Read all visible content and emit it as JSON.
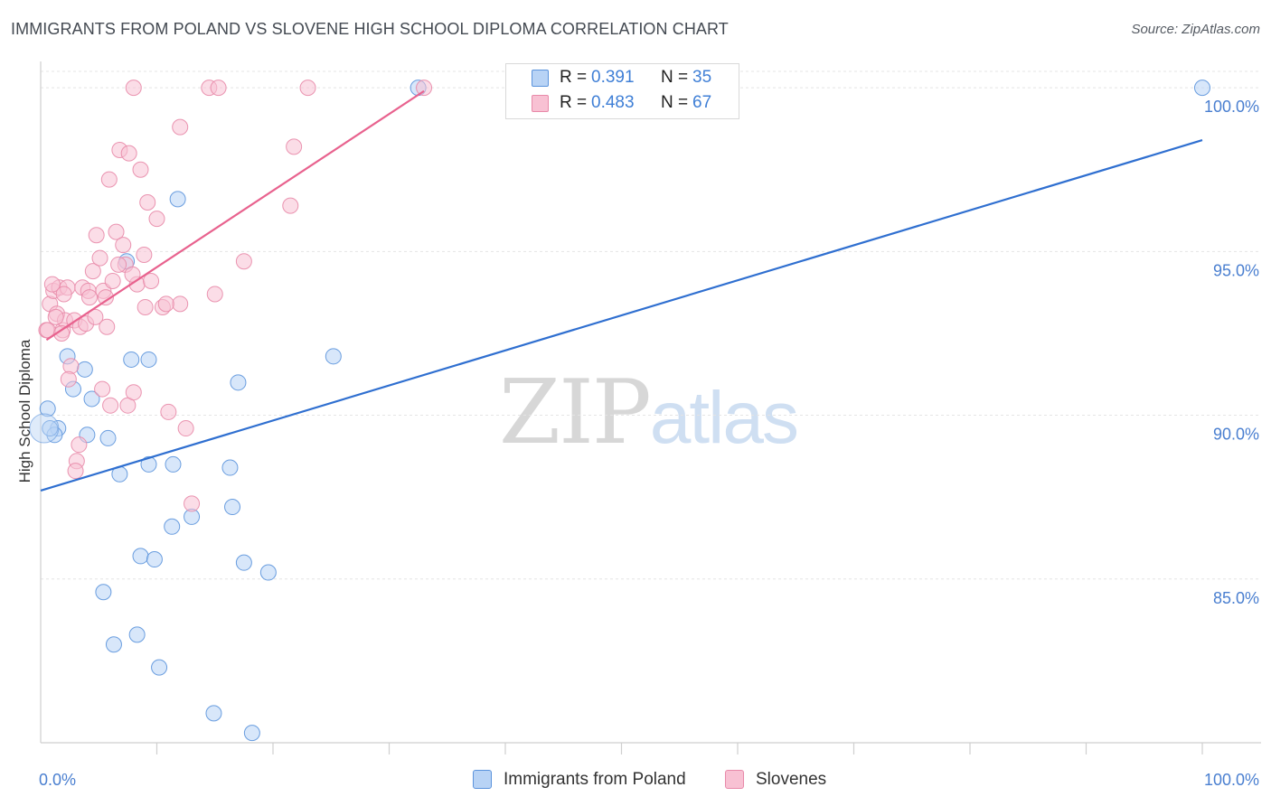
{
  "title": "IMMIGRANTS FROM POLAND VS SLOVENE HIGH SCHOOL DIPLOMA CORRELATION CHART",
  "source": "Source: ZipAtlas.com",
  "watermark": {
    "zip": "ZIP",
    "atlas": "atlas"
  },
  "colors": {
    "blue_fill": "#b8d3f5",
    "blue_stroke": "#5b93dc",
    "blue_line": "#2f6fd0",
    "pink_fill": "#f8c1d3",
    "pink_stroke": "#e889a9",
    "pink_line": "#e8628e",
    "accent_text": "#3f7fd6",
    "grid": "#e4e4e4"
  },
  "legend": {
    "rows": [
      {
        "r_label": "R =",
        "r_value": "0.391",
        "n_label": "N =",
        "n_value": "35"
      },
      {
        "r_label": "R =",
        "r_value": "0.483",
        "n_label": "N =",
        "n_value": "67"
      }
    ]
  },
  "bottom_legend": {
    "items": [
      {
        "label": "Immigrants from Poland"
      },
      {
        "label": "Slovenes"
      }
    ]
  },
  "chart_data": {
    "type": "scatter",
    "title": "IMMIGRANTS FROM POLAND VS SLOVENE HIGH SCHOOL DIPLOMA CORRELATION CHART",
    "xlabel": "",
    "ylabel": "High School Diploma",
    "xlim": [
      0,
      100
    ],
    "ylim": [
      80.0,
      100.5
    ],
    "x_tick_labels": [
      "0.0%",
      "100.0%"
    ],
    "x_ticks_minor": [
      10,
      20,
      30,
      40,
      50,
      60,
      70,
      80,
      90,
      100
    ],
    "y_ticks": [
      85,
      90,
      95,
      100
    ],
    "y_tick_labels": [
      "85.0%",
      "90.0%",
      "95.0%",
      "100.0%"
    ],
    "grid": true,
    "series": [
      {
        "name": "Immigrants from Poland",
        "color": "blue",
        "r": 0.391,
        "n": 35,
        "trend": {
          "x": [
            0,
            100
          ],
          "y": [
            87.7,
            98.4
          ]
        },
        "points": [
          [
            0.6,
            90.2
          ],
          [
            1.5,
            89.6
          ],
          [
            1.2,
            89.4
          ],
          [
            2.3,
            91.8
          ],
          [
            3.8,
            91.4
          ],
          [
            2.8,
            90.8
          ],
          [
            4.4,
            90.5
          ],
          [
            4.0,
            89.4
          ],
          [
            5.8,
            89.3
          ],
          [
            6.8,
            88.2
          ],
          [
            7.4,
            94.7
          ],
          [
            7.8,
            91.7
          ],
          [
            9.3,
            91.7
          ],
          [
            9.3,
            88.5
          ],
          [
            11.8,
            96.6
          ],
          [
            11.4,
            88.5
          ],
          [
            13.0,
            86.9
          ],
          [
            11.3,
            86.6
          ],
          [
            16.3,
            88.4
          ],
          [
            16.5,
            87.2
          ],
          [
            17.0,
            91.0
          ],
          [
            17.5,
            85.5
          ],
          [
            19.6,
            85.2
          ],
          [
            25.2,
            91.8
          ],
          [
            8.6,
            85.7
          ],
          [
            9.8,
            85.6
          ],
          [
            5.4,
            84.6
          ],
          [
            6.3,
            83.0
          ],
          [
            8.3,
            83.3
          ],
          [
            10.2,
            82.3
          ],
          [
            14.9,
            80.9
          ],
          [
            18.2,
            80.3
          ],
          [
            32.5,
            100.0
          ],
          [
            100.0,
            100.0
          ],
          [
            0.8,
            89.6
          ]
        ]
      },
      {
        "name": "Slovenes",
        "color": "pink",
        "r": 0.483,
        "n": 67,
        "trend": {
          "x": [
            0.5,
            33.0
          ],
          "y": [
            92.3,
            99.9
          ]
        },
        "points": [
          [
            0.5,
            92.6
          ],
          [
            0.8,
            93.4
          ],
          [
            1.1,
            93.8
          ],
          [
            1.4,
            93.1
          ],
          [
            1.6,
            93.9
          ],
          [
            1.9,
            92.6
          ],
          [
            2.1,
            92.9
          ],
          [
            2.3,
            93.9
          ],
          [
            2.6,
            91.5
          ],
          [
            2.9,
            92.9
          ],
          [
            3.1,
            88.6
          ],
          [
            3.4,
            92.7
          ],
          [
            3.6,
            93.9
          ],
          [
            3.9,
            92.8
          ],
          [
            4.1,
            93.8
          ],
          [
            4.5,
            94.4
          ],
          [
            4.8,
            95.5
          ],
          [
            5.1,
            94.8
          ],
          [
            5.4,
            93.8
          ],
          [
            5.6,
            93.6
          ],
          [
            5.9,
            97.2
          ],
          [
            6.2,
            94.1
          ],
          [
            6.5,
            95.6
          ],
          [
            6.8,
            98.1
          ],
          [
            7.1,
            95.2
          ],
          [
            7.3,
            94.6
          ],
          [
            7.6,
            98.0
          ],
          [
            8.0,
            100.0
          ],
          [
            8.3,
            94.0
          ],
          [
            8.6,
            97.5
          ],
          [
            8.9,
            94.9
          ],
          [
            9.2,
            96.5
          ],
          [
            9.5,
            94.1
          ],
          [
            10.0,
            96.0
          ],
          [
            10.5,
            93.3
          ],
          [
            11.0,
            90.1
          ],
          [
            12.0,
            98.8
          ],
          [
            12.5,
            89.6
          ],
          [
            13.0,
            87.3
          ],
          [
            14.5,
            100.0
          ],
          [
            15.0,
            93.7
          ],
          [
            15.3,
            100.0
          ],
          [
            17.5,
            94.7
          ],
          [
            21.5,
            96.4
          ],
          [
            21.8,
            98.2
          ],
          [
            23.0,
            100.0
          ],
          [
            33.0,
            100.0
          ],
          [
            1.0,
            94.0
          ],
          [
            2.0,
            93.7
          ],
          [
            3.3,
            89.1
          ],
          [
            4.7,
            93.0
          ],
          [
            5.3,
            90.8
          ],
          [
            6.0,
            90.3
          ],
          [
            7.5,
            90.3
          ],
          [
            8.0,
            90.7
          ],
          [
            9.0,
            93.3
          ],
          [
            12.0,
            93.4
          ],
          [
            0.6,
            92.6
          ],
          [
            2.4,
            91.1
          ],
          [
            3.0,
            88.3
          ],
          [
            6.7,
            94.6
          ],
          [
            7.9,
            94.3
          ],
          [
            1.3,
            93.0
          ],
          [
            4.2,
            93.6
          ],
          [
            5.7,
            92.7
          ],
          [
            10.8,
            93.4
          ],
          [
            1.8,
            92.5
          ]
        ]
      }
    ]
  }
}
